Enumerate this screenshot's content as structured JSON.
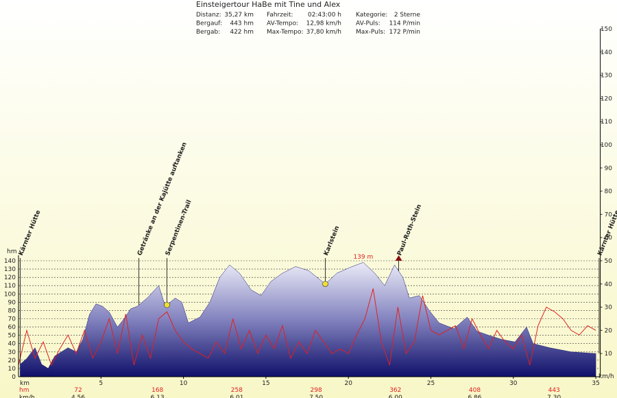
{
  "chart_data": {
    "type": "elevation-profile",
    "title": "Einsteigertour HaBe mit Tine und Alex",
    "stats": [
      [
        "Distanz:",
        "35,27 km"
      ],
      [
        "Fahrzeit:",
        "02:43:00 h"
      ],
      [
        "Kategorie:",
        "2 Sterne"
      ],
      [
        "Bergauf:",
        "443 hm"
      ],
      [
        "AV-Tempo:",
        "12,98 km/h"
      ],
      [
        "AV-Puls:",
        "114 P/min"
      ],
      [
        "Bergab:",
        "422 hm"
      ],
      [
        "Max-Tempo:",
        "37,80 km/h"
      ],
      [
        "Max-Puls:",
        "172 P/min"
      ]
    ],
    "xlabel": "km",
    "ylabel": "hm",
    "y2label": "km/h",
    "xlim": [
      0,
      35.27
    ],
    "xticks": [
      5,
      10,
      15,
      20,
      25,
      30,
      35
    ],
    "ylim": [
      0,
      140
    ],
    "yticks": [
      0,
      10,
      20,
      30,
      40,
      50,
      60,
      70,
      80,
      90,
      100,
      110,
      120,
      130,
      140
    ],
    "y2lim": [
      0,
      150
    ],
    "y2ticks": [
      10,
      20,
      30,
      40,
      50,
      60,
      70,
      80,
      90,
      100,
      110,
      120,
      130,
      140,
      150
    ],
    "grid": true,
    "series": [
      {
        "name": "hm",
        "color": "#1a1a78",
        "x": [
          0.1,
          0.5,
          1,
          1.4,
          1.8,
          2.2,
          3,
          3.5,
          3.9,
          4.3,
          4.7,
          5.1,
          5.5,
          6,
          6.4,
          6.8,
          7.2,
          7.8,
          8.5,
          8.9,
          9.5,
          9.9,
          10.3,
          11,
          11.6,
          12.2,
          12.8,
          13.4,
          14.1,
          14.7,
          15.3,
          16,
          16.8,
          17.6,
          18.6,
          19.3,
          20.1,
          20.9,
          21.6,
          22.2,
          22.8,
          23.3,
          23.7,
          24.3,
          24.9,
          25.5,
          26.4,
          27.2,
          27.8,
          28.5,
          29.3,
          30.1,
          30.8,
          31.2,
          32.2,
          33.5,
          35
        ],
        "values": [
          15,
          22,
          35,
          15,
          10,
          25,
          35,
          30,
          45,
          75,
          88,
          85,
          78,
          60,
          70,
          82,
          85,
          95,
          110,
          85,
          95,
          90,
          65,
          72,
          90,
          120,
          135,
          125,
          105,
          98,
          115,
          125,
          133,
          128,
          112,
          125,
          132,
          138,
          125,
          110,
          135,
          120,
          95,
          98,
          80,
          65,
          58,
          72,
          55,
          50,
          45,
          42,
          60,
          40,
          35,
          30,
          28
        ]
      },
      {
        "name": "km/h",
        "color": "#e02020",
        "axis": "y2",
        "x": [
          0,
          0.5,
          1,
          1.5,
          2,
          2.5,
          3,
          3.5,
          4,
          4.5,
          5,
          5.5,
          6,
          6.5,
          7,
          7.5,
          8,
          8.5,
          9,
          9.5,
          10,
          10.5,
          11,
          11.5,
          12,
          12.5,
          13,
          13.5,
          14,
          14.5,
          15,
          15.5,
          16,
          16.5,
          17,
          17.5,
          18,
          18.5,
          19,
          19.5,
          20,
          20.5,
          21,
          21.5,
          22,
          22.5,
          23,
          23.5,
          24,
          24.5,
          25,
          25.5,
          26,
          26.5,
          27,
          27.5,
          28,
          28.5,
          29,
          29.5,
          30,
          30.5,
          31,
          31.5,
          32,
          32.5,
          33,
          33.5,
          34,
          34.5,
          35
        ],
        "values": [
          5,
          20,
          8,
          15,
          5,
          12,
          18,
          10,
          20,
          8,
          15,
          25,
          10,
          27,
          5,
          18,
          8,
          25,
          28,
          20,
          15,
          12,
          10,
          8,
          15,
          10,
          25,
          12,
          20,
          10,
          18,
          12,
          22,
          8,
          15,
          10,
          20,
          15,
          10,
          12,
          10,
          18,
          25,
          38,
          15,
          5,
          30,
          10,
          15,
          35,
          20,
          18,
          20,
          22,
          12,
          25,
          18,
          12,
          20,
          15,
          12,
          18,
          5,
          22,
          30,
          28,
          25,
          20,
          18,
          22,
          20
        ]
      }
    ],
    "markers": [
      {
        "label": "Kärnter Hütte",
        "x": 0.1
      },
      {
        "label": "Getränke an der Kajütte auftanken",
        "x": 7.3
      },
      {
        "label": "Serpentinen-Trail",
        "x": 9.0
      },
      {
        "label": "Karlstein",
        "x": 18.6
      },
      {
        "label": "Paul-Roth-Stein",
        "x": 23.05
      },
      {
        "label": "Kärnter Hütte",
        "x": 35.2
      }
    ],
    "max_label": "139 m",
    "summary_rows": [
      {
        "label": "hm",
        "values": [
          "72",
          "168",
          "258",
          "298",
          "362",
          "408",
          "443"
        ]
      },
      {
        "label": "km/h",
        "values": [
          "4.56",
          "6.13",
          "6.01",
          "7.50",
          "6.00",
          "6.86",
          "7.30"
        ]
      }
    ]
  }
}
